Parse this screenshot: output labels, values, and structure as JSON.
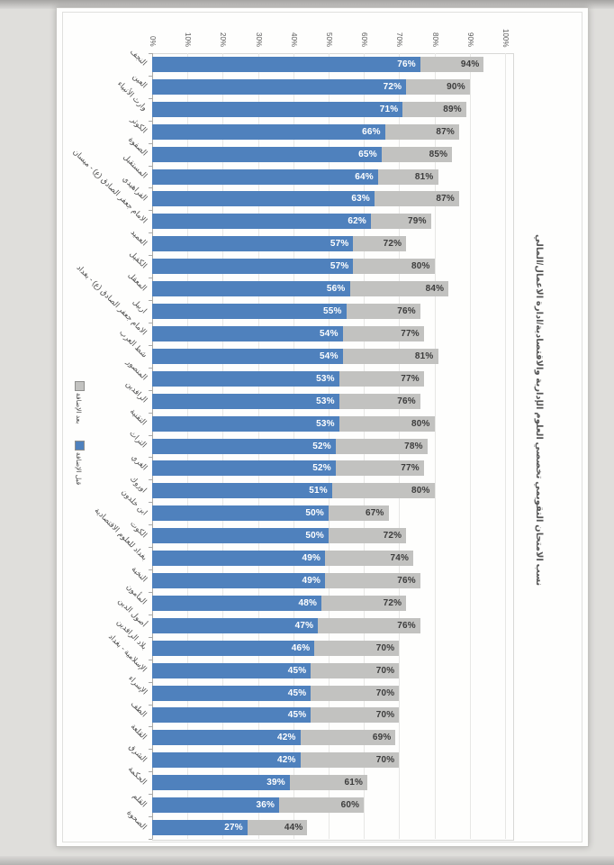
{
  "page": {
    "background": "#dfdedb",
    "paper_background": "#fefefd"
  },
  "title": {
    "text": "نسب الامتحان التقويمي تخصصي العلوم الإدارية والاقتصادية/ادارة الاعمال/المالي",
    "color": "#565656"
  },
  "axis": {
    "tick_labels": [
      "0%",
      "10%",
      "20%",
      "30%",
      "40%",
      "50%",
      "60%",
      "70%",
      "80%",
      "90%",
      "100%"
    ],
    "min": 0,
    "max": 100
  },
  "legend": {
    "items": [
      {
        "label": "بعد الإضافة",
        "series": "after",
        "color": "#c2c2c0"
      },
      {
        "label": "قبل الإضافة",
        "series": "before",
        "color": "#4f81bd"
      }
    ]
  },
  "chart_data": {
    "type": "bar",
    "orientation": "horizontal",
    "title": "نسب الامتحان التقويمي تخصصي العلوم الإدارية والاقتصادية/ادارة الاعمال/المالي",
    "xlim": [
      0,
      100
    ],
    "grid": true,
    "legend_position": "left-middle",
    "value_suffix": "%",
    "categories": [
      "النجف",
      "العين",
      "وارث الأنبياء",
      "الكوثر",
      "الصفوة",
      "المستقبل",
      "الفراهيدي",
      "الامام جعفر الصادق (ع) - ميسان",
      "العميد",
      "الكفيل",
      "المعقل",
      "اربيل",
      "الامام جعفر الصادق (ع) - بغداد",
      "شط العرب",
      "المنصور",
      "الرافدين",
      "التقنية",
      "التراث",
      "الغري",
      "اوروك",
      "ابن خلدون",
      "الكوت",
      "بغداد للعلوم الاقتصادية",
      "النخبة",
      "المأمون",
      "أصول الدين",
      "بلاد الرافدين",
      "الإسلامية - بغداد",
      "الإسراء",
      "الطف",
      "القلعة",
      "الشرق",
      "الحكمة",
      "القلم",
      "الصحوة"
    ],
    "series": [
      {
        "name": "قبل الإضافة",
        "color": "#4f81bd",
        "label_color": "#ffffff",
        "values": [
          76,
          72,
          71,
          66,
          65,
          64,
          63,
          62,
          57,
          57,
          56,
          55,
          54,
          54,
          53,
          53,
          53,
          52,
          52,
          51,
          50,
          50,
          49,
          49,
          48,
          47,
          46,
          45,
          45,
          45,
          42,
          42,
          39,
          36,
          27
        ]
      },
      {
        "name": "بعد الإضافة",
        "color": "#c2c2c0",
        "label_color": "#3c3c3c",
        "values": [
          94,
          90,
          89,
          87,
          85,
          81,
          87,
          79,
          72,
          80,
          84,
          76,
          77,
          81,
          77,
          76,
          80,
          78,
          77,
          80,
          67,
          72,
          74,
          76,
          72,
          76,
          70,
          70,
          70,
          70,
          69,
          70,
          61,
          60,
          44
        ]
      }
    ]
  }
}
